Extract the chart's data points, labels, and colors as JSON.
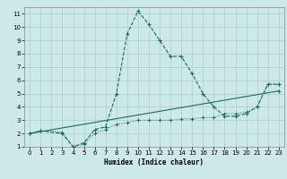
{
  "title": "",
  "xlabel": "Humidex (Indice chaleur)",
  "bg_color": "#cce8e8",
  "grid_color": "#aacccc",
  "line_color": "#1a6b5a",
  "xlim": [
    -0.5,
    23.5
  ],
  "ylim": [
    1,
    11.5
  ],
  "xticks": [
    0,
    1,
    2,
    3,
    4,
    5,
    6,
    7,
    8,
    9,
    10,
    11,
    12,
    13,
    14,
    15,
    16,
    17,
    18,
    19,
    20,
    21,
    22,
    23
  ],
  "yticks": [
    1,
    2,
    3,
    4,
    5,
    6,
    7,
    8,
    9,
    10,
    11
  ],
  "line1_x": [
    0,
    1,
    3,
    4,
    5,
    6,
    7,
    8,
    9,
    10,
    11,
    12,
    13,
    14,
    15,
    16,
    17,
    18,
    19,
    20,
    21,
    22,
    23
  ],
  "line1_y": [
    2.0,
    2.2,
    2.0,
    1.0,
    1.3,
    2.3,
    2.5,
    5.0,
    9.5,
    11.2,
    10.2,
    9.0,
    7.8,
    7.8,
    6.5,
    5.0,
    4.0,
    3.3,
    3.3,
    3.5,
    4.0,
    5.7,
    5.7
  ],
  "line2_x": [
    0,
    1,
    3,
    4,
    5,
    6,
    7,
    8,
    9,
    10,
    11,
    12,
    13,
    14,
    15,
    16,
    17,
    18,
    19,
    20,
    21,
    22,
    23
  ],
  "line2_y": [
    2.0,
    2.2,
    2.1,
    1.0,
    1.2,
    2.0,
    2.3,
    2.7,
    2.8,
    3.0,
    3.0,
    3.0,
    3.0,
    3.1,
    3.1,
    3.2,
    3.2,
    3.5,
    3.5,
    3.6,
    4.0,
    5.7,
    5.7
  ],
  "line3_x": [
    0,
    23
  ],
  "line3_y": [
    2.0,
    5.2
  ]
}
